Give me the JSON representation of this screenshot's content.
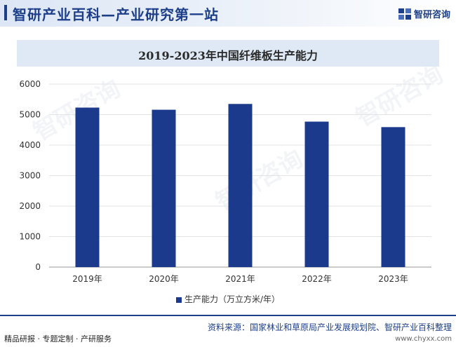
{
  "header": {
    "title": "智研产业百科—产业研究第一站",
    "brand": "智研咨询"
  },
  "chart_data": {
    "type": "bar",
    "title": "2019-2023年中国纤维板生产能力",
    "categories": [
      "2019年",
      "2020年",
      "2021年",
      "2022年",
      "2023年"
    ],
    "series": [
      {
        "name": "生产能力（万立方米/年）",
        "values": [
          5230,
          5160,
          5350,
          4770,
          4590
        ]
      }
    ],
    "ylim": [
      0,
      6000
    ],
    "yticks": [
      0,
      1000,
      2000,
      3000,
      4000,
      5000,
      6000
    ],
    "grid": true,
    "legend_position": "bottom",
    "colors": {
      "bar": "#1b3a8c"
    }
  },
  "footer": {
    "left": "精品研报 · 专题定制 · 产研服务",
    "source": "资料来源：国家林业和草原局产业发展规划院、智研产业百科整理",
    "url": "www.chyxx.com"
  }
}
